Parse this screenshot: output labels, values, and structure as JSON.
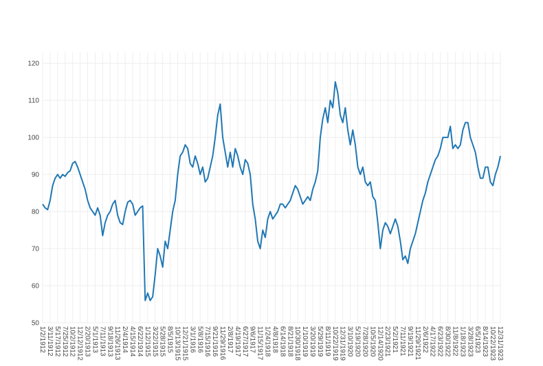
{
  "chart_data": {
    "type": "line",
    "color": "#1f77b4",
    "grid": true,
    "ylim": [
      50,
      123
    ],
    "yticks": [
      50,
      60,
      70,
      80,
      90,
      100,
      110,
      120
    ],
    "categories": [
      "1/2/1912",
      null,
      null,
      "3/11/1912",
      null,
      null,
      "5/17/1912",
      null,
      null,
      "7/25/1912",
      null,
      null,
      "10/2/1912",
      null,
      null,
      "12/12/1912",
      null,
      null,
      "2/20/1913",
      null,
      null,
      "5/1/1913",
      null,
      null,
      "7/11/1913",
      null,
      null,
      "9/18/1913",
      null,
      null,
      "11/26/1913",
      null,
      null,
      "2/4/1914",
      null,
      null,
      "4/15/1914",
      null,
      null,
      "6/22/1914",
      null,
      null,
      "1/12/1915",
      null,
      null,
      "3/22/1915",
      null,
      null,
      "5/28/1915",
      null,
      null,
      "8/5/1915",
      null,
      null,
      "10/13/1915",
      null,
      null,
      "12/21/1915",
      null,
      null,
      "3/1/1916",
      null,
      null,
      "5/8/1916",
      null,
      null,
      "7/15/1916",
      null,
      null,
      "9/21/1916",
      null,
      null,
      "11/29/1916",
      null,
      null,
      "2/8/1917",
      null,
      null,
      "4/19/1917",
      null,
      null,
      "6/27/1917",
      null,
      null,
      "9/6/1917",
      null,
      null,
      "11/15/1917",
      null,
      null,
      "1/24/1918",
      null,
      null,
      "4/8/1918",
      null,
      null,
      "6/14/1918",
      null,
      null,
      "8/21/1918",
      null,
      null,
      "10/30/1918",
      null,
      null,
      "1/10/1919",
      null,
      null,
      "3/20/1919",
      null,
      null,
      "5/29/1919",
      null,
      null,
      "8/11/1919",
      null,
      null,
      "10/22/1919",
      null,
      null,
      "12/31/1919",
      null,
      null,
      "3/10/1920",
      null,
      null,
      "5/19/1920",
      null,
      null,
      "7/28/1920",
      null,
      null,
      "10/5/1920",
      null,
      null,
      "12/14/1920",
      null,
      null,
      "2/23/1921",
      null,
      null,
      "5/2/1921",
      null,
      null,
      "7/11/1921",
      null,
      null,
      "9/19/1921",
      null,
      null,
      "11/29/1921",
      null,
      null,
      "2/6/1922",
      null,
      null,
      "4/17/1922",
      null,
      null,
      "6/23/1922",
      null,
      null,
      "8/30/1922",
      null,
      null,
      "11/8/1922",
      null,
      null,
      "1/18/1923",
      null,
      null,
      "3/28/1923",
      null,
      null,
      "6/5/1923",
      null,
      null,
      "8/14/1923",
      null,
      null,
      "10/22/1923",
      null,
      null,
      "12/31/1923"
    ],
    "values": [
      82,
      81,
      80.5,
      83,
      87,
      89,
      90,
      89,
      90,
      89.5,
      90.5,
      91,
      93,
      93.5,
      92,
      90,
      88,
      86,
      83,
      81,
      80,
      79,
      81,
      79,
      73.5,
      77,
      79,
      80,
      82,
      83,
      79,
      77,
      76.5,
      80,
      82.5,
      83,
      82,
      79,
      80,
      81,
      81.5,
      56,
      58,
      56,
      57,
      63,
      70,
      68,
      65,
      72,
      70,
      75,
      80,
      83,
      90,
      95,
      96,
      98,
      97,
      93,
      92,
      95,
      93,
      90,
      92,
      88,
      89,
      92,
      95,
      100,
      106,
      109,
      100,
      96,
      92,
      96,
      92,
      97,
      95,
      92,
      90,
      94,
      93,
      90,
      82,
      78,
      72,
      70,
      75,
      73,
      78,
      80,
      78,
      79,
      80,
      82,
      82,
      81,
      82,
      83,
      85,
      87,
      86,
      84,
      82,
      83,
      84,
      83,
      86,
      88,
      91,
      100,
      105,
      108,
      104,
      110,
      108,
      115,
      112,
      106,
      104,
      108,
      102,
      98,
      102,
      98,
      92,
      90,
      92,
      88,
      87,
      88,
      84,
      83,
      77,
      70,
      75,
      77,
      76,
      74,
      76,
      78,
      76,
      72,
      67,
      68,
      66,
      70,
      72,
      74,
      77,
      80,
      83,
      85,
      88,
      90,
      92,
      94,
      95,
      97,
      100,
      100,
      100,
      103,
      97,
      98,
      97,
      98,
      102,
      104,
      104,
      100,
      98,
      96,
      92,
      89,
      89,
      92,
      92,
      88,
      87,
      90,
      92,
      95
    ]
  }
}
